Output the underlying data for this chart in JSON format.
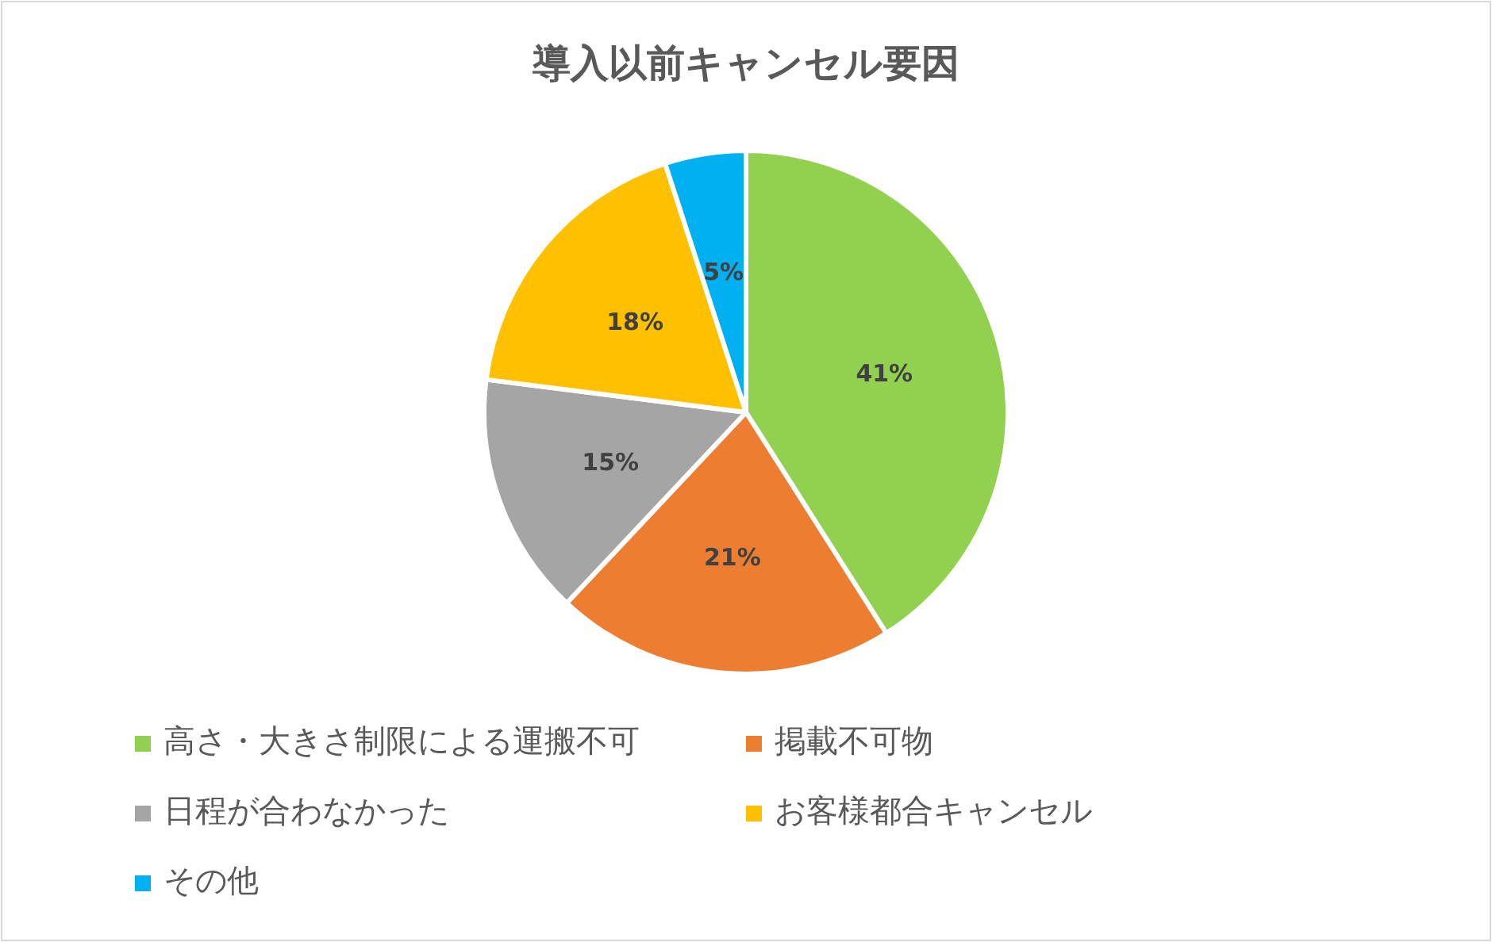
{
  "chart_data": {
    "type": "pie",
    "title": "導入以前キャンセル要因",
    "categories": [
      "高さ・大きさ制限による運搬不可",
      "掲載不可物",
      "日程が合わなかった",
      "お客様都合キャンセル",
      "その他"
    ],
    "values": [
      41,
      21,
      15,
      18,
      5
    ],
    "colors": [
      "#92d050",
      "#ed7d31",
      "#a5a5a5",
      "#ffc000",
      "#00b0f0"
    ],
    "value_labels": [
      "41%",
      "21%",
      "15%",
      "18%",
      "5%"
    ],
    "legend": "bottom"
  }
}
